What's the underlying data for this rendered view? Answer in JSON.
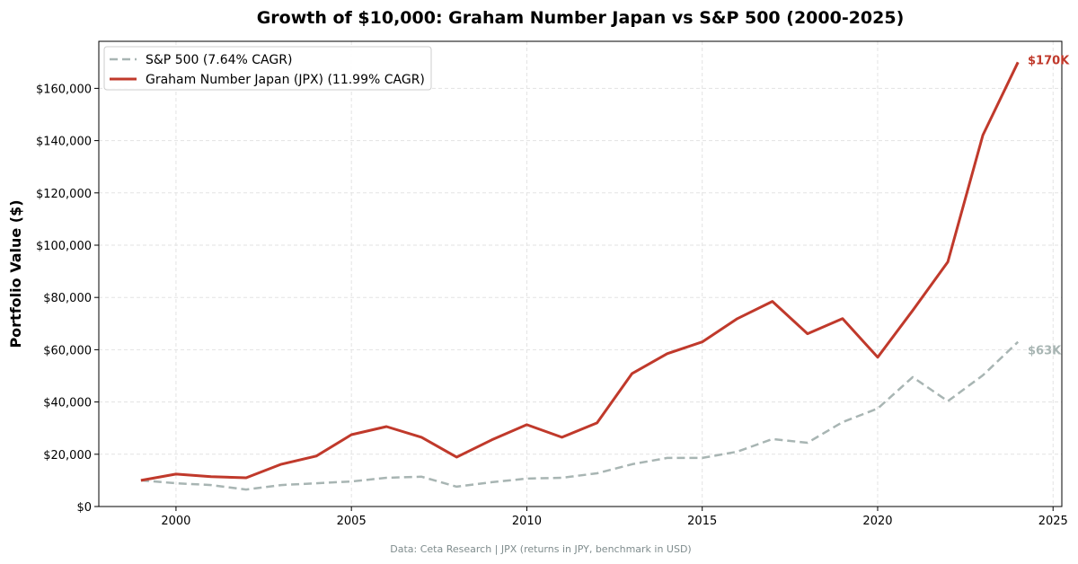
{
  "chart_data": {
    "type": "line",
    "title": "Growth of $10,000: Graham Number Japan vs S&P 500 (2000-2025)",
    "xlabel": "",
    "ylabel": "Portfolio Value ($)",
    "footnote": "Data: Ceta Research | JPX (returns in JPY, benchmark in USD)",
    "xlim": [
      1997.8,
      2025.25
    ],
    "ylim": [
      0,
      178000
    ],
    "grid": true,
    "legend_position": "top-left",
    "x_ticks": [
      2000,
      2005,
      2010,
      2015,
      2020,
      2025
    ],
    "y_ticks": [
      0,
      20000,
      40000,
      60000,
      80000,
      100000,
      120000,
      140000,
      160000
    ],
    "y_tick_labels": [
      "$0",
      "$20,000",
      "$40,000",
      "$60,000",
      "$80,000",
      "$100,000",
      "$120,000",
      "$140,000",
      "$160,000"
    ],
    "x": [
      1999,
      2000,
      2001,
      2002,
      2003,
      2004,
      2005,
      2006,
      2007,
      2008,
      2009,
      2010,
      2011,
      2012,
      2013,
      2014,
      2015,
      2016,
      2017,
      2018,
      2019,
      2020,
      2021,
      2022,
      2023,
      2024
    ],
    "series": [
      {
        "name": "S&P 500 (7.64% CAGR)",
        "color": "#a8b5b3",
        "dashed": true,
        "end_label": "$63K",
        "values": [
          10000,
          8900,
          8200,
          6500,
          8200,
          8900,
          9600,
          11000,
          11400,
          7600,
          9300,
          10700,
          11000,
          12700,
          16200,
          18600,
          18600,
          21000,
          25800,
          24400,
          32300,
          37500,
          49500,
          40300,
          50200,
          63000
        ]
      },
      {
        "name": "Graham Number Japan (JPX) (11.99% CAGR)",
        "color": "#c0392b",
        "dashed": false,
        "end_label": "$170K",
        "values": [
          10000,
          12400,
          11400,
          11000,
          16200,
          19300,
          27500,
          30600,
          26500,
          18900,
          25500,
          31300,
          26500,
          32000,
          50900,
          58500,
          63000,
          71900,
          78500,
          66100,
          71900,
          57100,
          75000,
          93600,
          142100,
          170000
        ]
      }
    ]
  }
}
